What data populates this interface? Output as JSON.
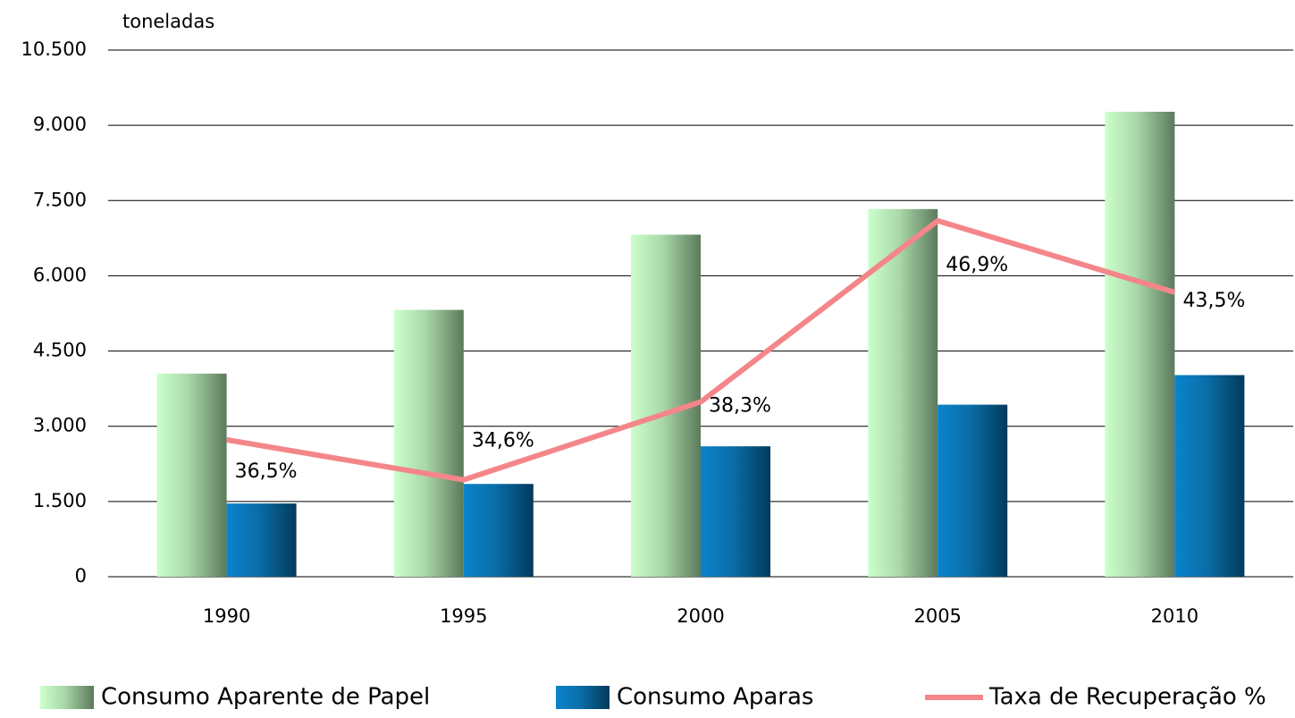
{
  "chart_data": {
    "type": "bar",
    "y_label": "toneladas",
    "categories": [
      "1990",
      "1995",
      "2000",
      "2005",
      "2010"
    ],
    "series": [
      {
        "name": "Consumo Aparente de Papel",
        "type": "bar",
        "color": "#a9d8a9",
        "values": [
          4050,
          5320,
          6820,
          7330,
          9270
        ]
      },
      {
        "name": "Consumo Aparas",
        "type": "bar",
        "color": "#0a6ea8",
        "values": [
          1460,
          1850,
          2600,
          3430,
          4020
        ]
      },
      {
        "name": "Taxa de Recuperação %",
        "type": "line",
        "axis": "y2",
        "color": "#f4868a",
        "values": [
          36.5,
          34.6,
          38.3,
          46.9,
          43.5
        ],
        "value_labels": [
          "36,5%",
          "34,6%",
          "38,3%",
          "46,9%",
          "43,5%"
        ]
      }
    ],
    "ylim": [
      0,
      10500
    ],
    "yticks": [
      0,
      {
        "value": 1500,
        "label": "1.500"
      },
      {
        "value": 3000,
        "label": "3.000"
      },
      {
        "value": 4500,
        "label": "4.500"
      },
      {
        "value": 6000,
        "label": "6.000"
      },
      {
        "value": 7500,
        "label": "7.500"
      },
      {
        "value": 9000,
        "label": "9.000"
      },
      {
        "value": 10500,
        "label": "10.500"
      }
    ],
    "y2lim": [
      30,
      55
    ],
    "grid": true,
    "legend": "bottom"
  }
}
